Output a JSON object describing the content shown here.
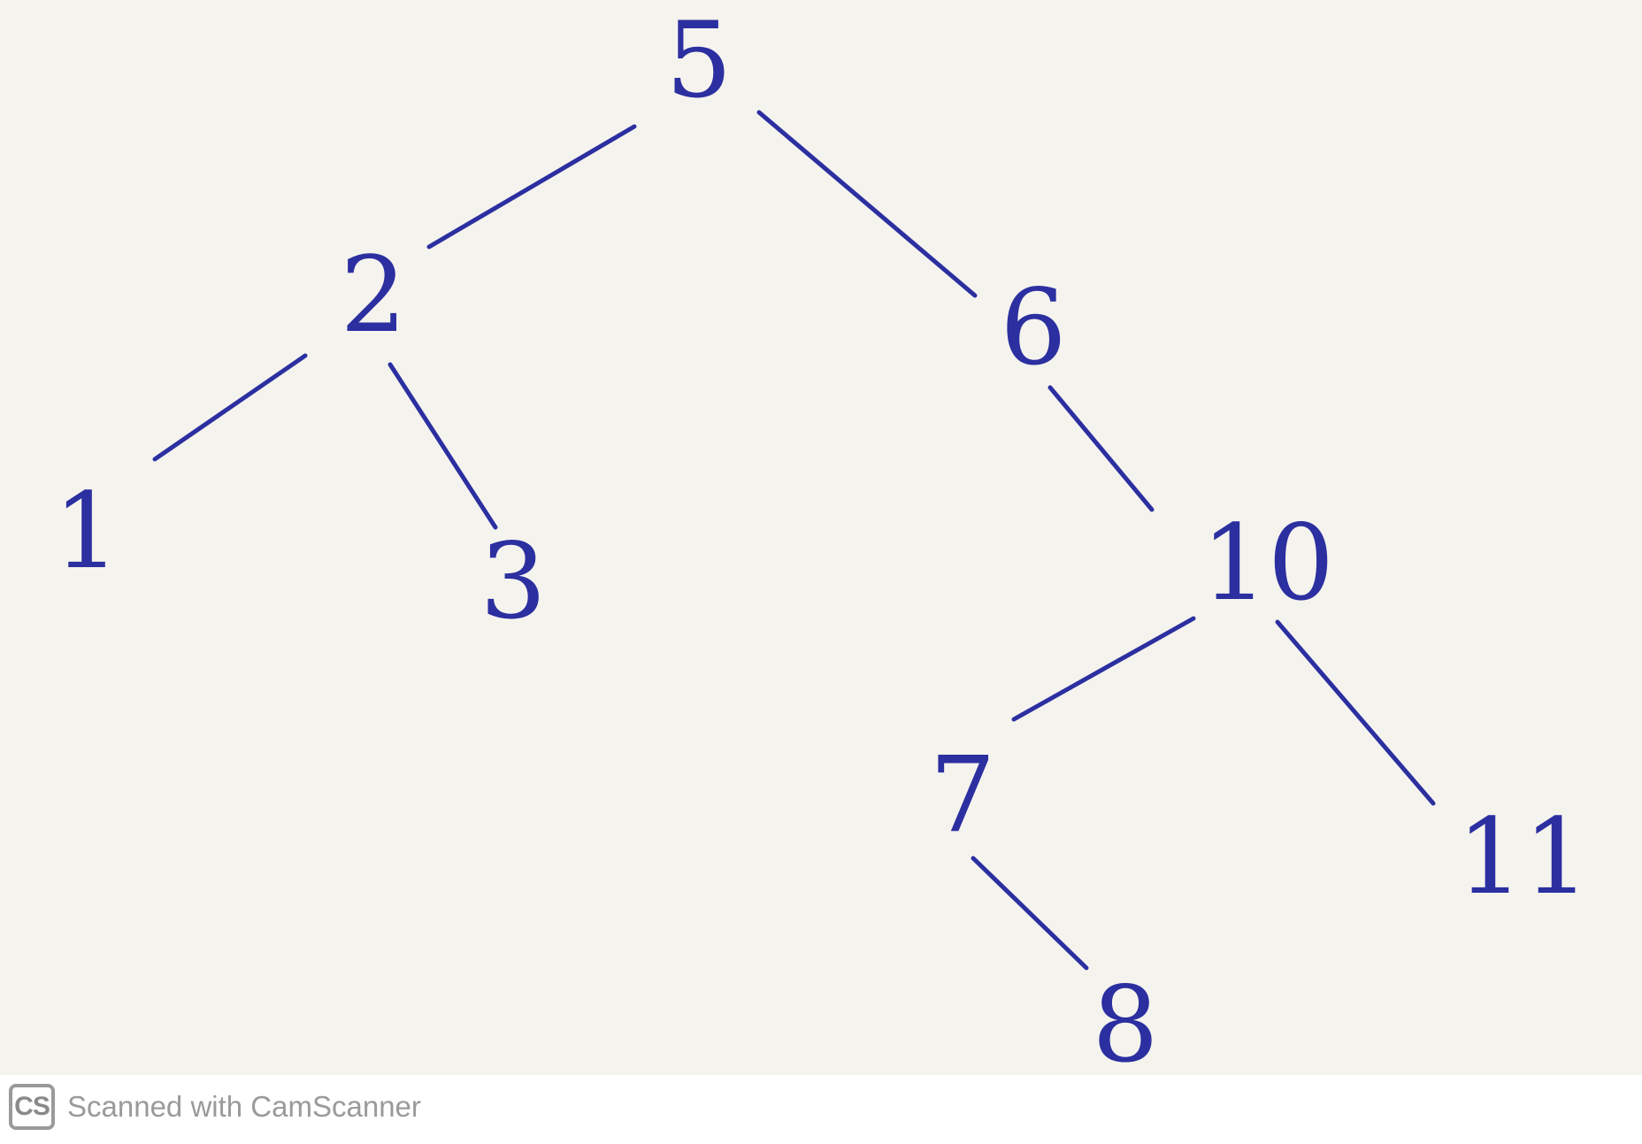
{
  "tree": {
    "nodes": [
      {
        "id": "5",
        "label": "5"
      },
      {
        "id": "2",
        "label": "2"
      },
      {
        "id": "6",
        "label": "6"
      },
      {
        "id": "1",
        "label": "1"
      },
      {
        "id": "3",
        "label": "3"
      },
      {
        "id": "10",
        "label": "10"
      },
      {
        "id": "7",
        "label": "7"
      },
      {
        "id": "11",
        "label": "11"
      },
      {
        "id": "8",
        "label": "8"
      }
    ],
    "edges": [
      {
        "from": "5",
        "to": "2"
      },
      {
        "from": "5",
        "to": "6"
      },
      {
        "from": "2",
        "to": "1"
      },
      {
        "from": "2",
        "to": "3"
      },
      {
        "from": "6",
        "to": "10"
      },
      {
        "from": "10",
        "to": "7"
      },
      {
        "from": "10",
        "to": "11"
      },
      {
        "from": "7",
        "to": "8"
      }
    ],
    "ink_color": "#2b2fa0"
  },
  "footer": {
    "logo_text": "CS",
    "watermark_text": "Scanned with CamScanner"
  }
}
